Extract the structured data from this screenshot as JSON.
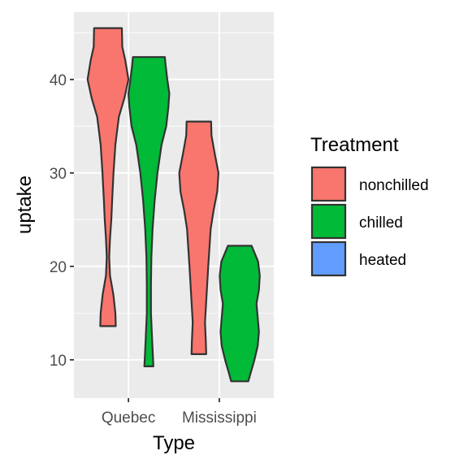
{
  "chart_data": {
    "type": "violin",
    "xlabel": "Type",
    "ylabel": "uptake",
    "categories": [
      "Quebec",
      "Mississippi"
    ],
    "ylim": [
      5.9,
      47.2
    ],
    "yticks": [
      10,
      20,
      30,
      40
    ],
    "grid": true,
    "legend": {
      "title": "Treatment",
      "placement": "right",
      "entries": [
        {
          "name": "nonchilled",
          "color": "#F8766D"
        },
        {
          "name": "chilled",
          "color": "#00BA38"
        },
        {
          "name": "heated",
          "color": "#619CFF"
        }
      ]
    },
    "series": [
      {
        "name": "nonchilled",
        "color": "#F8766D",
        "violins": [
          {
            "category": "Quebec",
            "min": 13.6,
            "max": 45.5,
            "profile": [
              [
                13.6,
                0.38
              ],
              [
                15,
                0.36
              ],
              [
                17,
                0.26
              ],
              [
                19,
                0.1
              ],
              [
                21,
                0.06
              ],
              [
                23,
                0.1
              ],
              [
                25,
                0.16
              ],
              [
                27,
                0.2
              ],
              [
                30,
                0.27
              ],
              [
                33,
                0.36
              ],
              [
                36,
                0.53
              ],
              [
                38,
                0.8
              ],
              [
                40,
                1.0
              ],
              [
                42,
                0.85
              ],
              [
                43.5,
                0.7
              ],
              [
                45.5,
                0.68
              ]
            ]
          },
          {
            "category": "Mississippi",
            "min": 10.6,
            "max": 35.5,
            "profile": [
              [
                10.6,
                0.36
              ],
              [
                12,
                0.34
              ],
              [
                14,
                0.3
              ],
              [
                17,
                0.38
              ],
              [
                20,
                0.46
              ],
              [
                22,
                0.52
              ],
              [
                24,
                0.58
              ],
              [
                26,
                0.72
              ],
              [
                28,
                0.9
              ],
              [
                30,
                0.96
              ],
              [
                32,
                0.78
              ],
              [
                34,
                0.62
              ],
              [
                35.5,
                0.6
              ]
            ]
          }
        ]
      },
      {
        "name": "chilled",
        "color": "#00BA38",
        "violins": [
          {
            "category": "Quebec",
            "min": 9.3,
            "max": 42.4,
            "profile": [
              [
                9.3,
                0.22
              ],
              [
                12,
                0.16
              ],
              [
                15,
                0.1
              ],
              [
                18,
                0.1
              ],
              [
                21,
                0.12
              ],
              [
                24,
                0.18
              ],
              [
                27,
                0.28
              ],
              [
                30,
                0.42
              ],
              [
                33,
                0.62
              ],
              [
                35,
                0.85
              ],
              [
                37,
                0.95
              ],
              [
                38.5,
                1.0
              ],
              [
                40,
                0.9
              ],
              [
                41.5,
                0.82
              ],
              [
                42.4,
                0.78
              ]
            ]
          },
          {
            "category": "Mississippi",
            "min": 7.7,
            "max": 22.2,
            "profile": [
              [
                7.7,
                0.42
              ],
              [
                8.5,
                0.52
              ],
              [
                10,
                0.72
              ],
              [
                11.5,
                0.88
              ],
              [
                13,
                0.94
              ],
              [
                14.5,
                0.88
              ],
              [
                16,
                0.82
              ],
              [
                17.5,
                0.94
              ],
              [
                19,
                0.98
              ],
              [
                20.5,
                0.9
              ],
              [
                22.2,
                0.58
              ]
            ]
          }
        ]
      }
    ]
  }
}
